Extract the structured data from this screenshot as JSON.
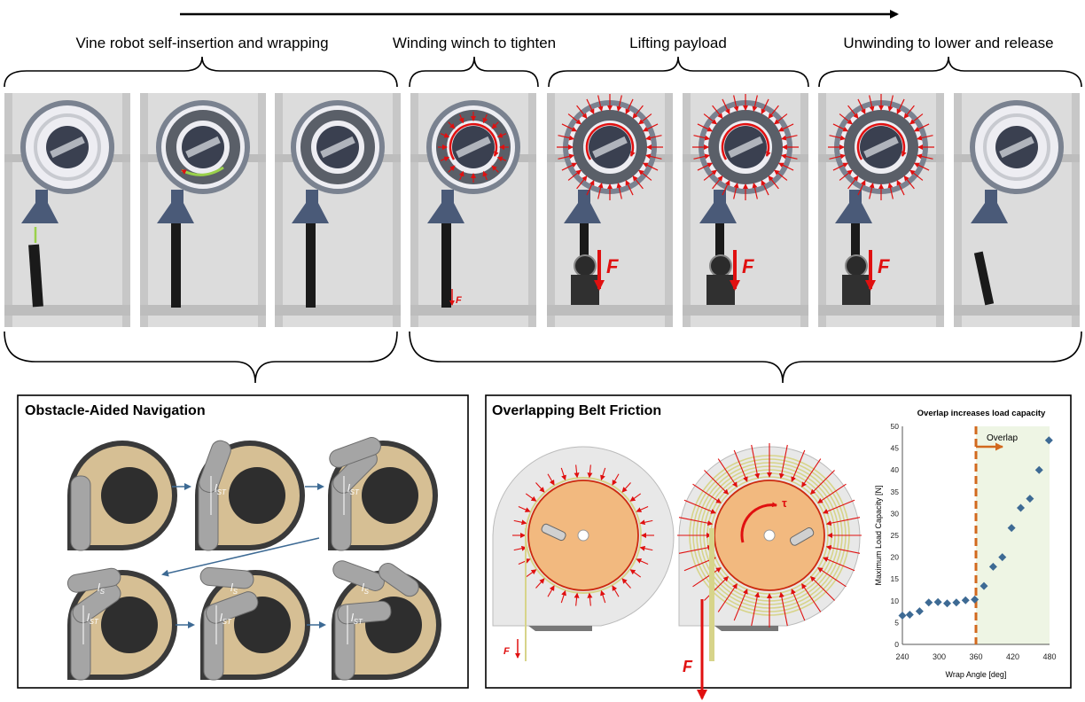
{
  "phases": [
    {
      "label": "Vine robot self-insertion and wrapping"
    },
    {
      "label": "Winding winch to tighten"
    },
    {
      "label": "Lifting payload"
    },
    {
      "label": "Unwinding to lower and release"
    }
  ],
  "frames": [
    {
      "force_label": ""
    },
    {
      "force_label": ""
    },
    {
      "force_label": ""
    },
    {
      "force_label": "F"
    },
    {
      "force_label": "F"
    },
    {
      "force_label": "F"
    },
    {
      "force_label": "F"
    },
    {
      "force_label": ""
    }
  ],
  "panel_left": {
    "title": "Obstacle-Aided Navigation",
    "label_st": "l",
    "label_st_sub": "ST",
    "label_s": "l",
    "label_s_sub": "S"
  },
  "panel_right": {
    "title": "Overlapping Belt Friction",
    "force_label": "F",
    "torque_label": "τ"
  },
  "colors": {
    "force_red": "#e01010",
    "wheel_orange": "#f2b97f",
    "belt_yellow": "#d7d48a",
    "robot_gray": "#a5a5a5",
    "drum_tan": "#d6bf94",
    "marker_blue": "#3d6a94",
    "overlap_orange": "#d2691e",
    "overlap_fill": "#eef5e4"
  },
  "chart_data": {
    "type": "scatter",
    "title": "Overlap increases load capacity",
    "xlabel": "Wrap Angle [deg]",
    "ylabel": "Maximum Load Capacity [N]",
    "xlim": [
      240,
      480
    ],
    "ylim": [
      0,
      50
    ],
    "xticks": [
      240,
      300,
      360,
      420,
      480
    ],
    "yticks": [
      0,
      5,
      10,
      15,
      20,
      25,
      30,
      35,
      40,
      45,
      50
    ],
    "annotation": {
      "label": "Overlap",
      "x": 360
    },
    "x": [
      240,
      252,
      268,
      283,
      298,
      313,
      328,
      343,
      358,
      373,
      388,
      403,
      418,
      433,
      448,
      463,
      479
    ],
    "y": [
      6.6,
      6.8,
      7.6,
      9.6,
      9.7,
      9.4,
      9.6,
      10.1,
      10.3,
      13.4,
      17.8,
      20.0,
      26.7,
      31.3,
      33.4,
      40.0,
      46.8
    ]
  }
}
